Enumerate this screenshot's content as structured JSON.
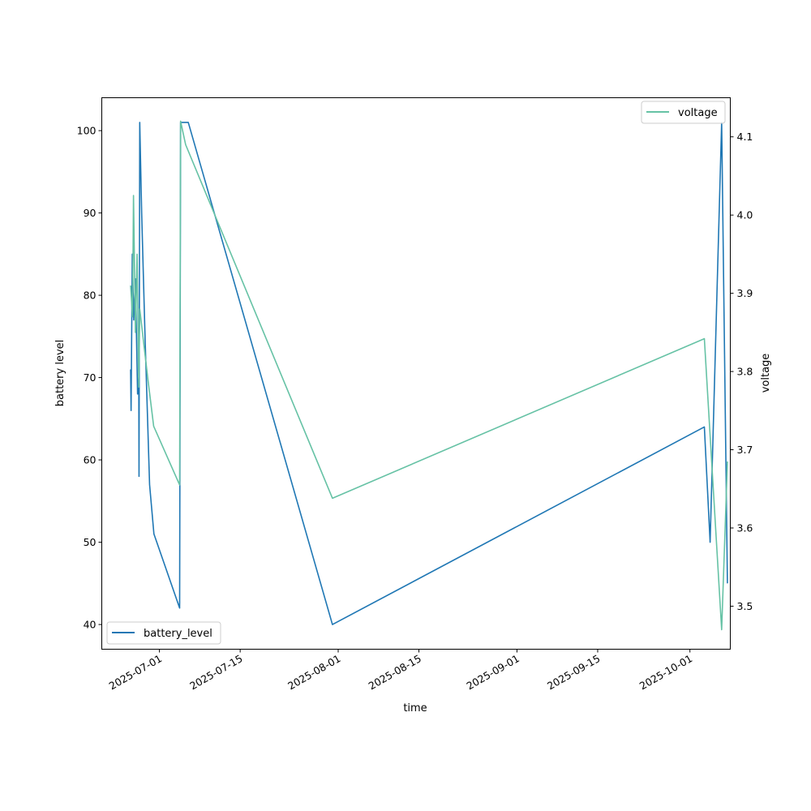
{
  "chart_data": {
    "type": "line",
    "xlabel": "time",
    "ylabel_left": "battery level",
    "ylabel_right": "voltage",
    "x_axis_type": "date",
    "xlim": [
      "2025-06-21",
      "2025-10-08"
    ],
    "ylim_left": [
      37,
      104
    ],
    "ylim_right": [
      3.445,
      4.15
    ],
    "x_ticks": [
      "2025-07-01",
      "2025-07-15",
      "2025-08-01",
      "2025-08-15",
      "2025-09-01",
      "2025-09-15",
      "2025-10-01"
    ],
    "y_ticks_left": [
      40,
      50,
      60,
      70,
      80,
      90,
      100
    ],
    "y_ticks_right": [
      3.5,
      3.6,
      3.7,
      3.8,
      3.9,
      4.0,
      4.1
    ],
    "y_ticks_right_labels": [
      "3.5",
      "3.6",
      "3.7",
      "3.8",
      "3.9",
      "4.0",
      "4.1"
    ],
    "grid": false,
    "series": [
      {
        "name": "battery_level",
        "axis": "left",
        "color": "#1f77b4",
        "legend_position": "lower-left",
        "points": [
          [
            "2025-06-26T00:00",
            71
          ],
          [
            "2025-06-26T02:00",
            66
          ],
          [
            "2025-06-26T07:00",
            85
          ],
          [
            "2025-06-26T13:00",
            77
          ],
          [
            "2025-06-26T20:00",
            82
          ],
          [
            "2025-06-27T05:00",
            68
          ],
          [
            "2025-06-27T10:00",
            70
          ],
          [
            "2025-06-27T11:00",
            58
          ],
          [
            "2025-06-27T14:00",
            101
          ],
          [
            "2025-06-27T22:00",
            90
          ],
          [
            "2025-06-28T12:00",
            75
          ],
          [
            "2025-06-29T07:00",
            57
          ],
          [
            "2025-06-30T01:00",
            51
          ],
          [
            "2025-07-04T12:00",
            42
          ],
          [
            "2025-07-04T16:00",
            101
          ],
          [
            "2025-07-06T00:00",
            101
          ],
          [
            "2025-07-31T00:00",
            40
          ],
          [
            "2025-10-03T12:00",
            64
          ],
          [
            "2025-10-04T12:00",
            50
          ],
          [
            "2025-10-06T12:00",
            101
          ],
          [
            "2025-10-07T12:00",
            45
          ]
        ]
      },
      {
        "name": "voltage",
        "axis": "right",
        "color": "#66c2a5",
        "legend_position": "upper-right",
        "points": [
          [
            "2025-06-26T00:00",
            3.91
          ],
          [
            "2025-06-26T08:00",
            3.87
          ],
          [
            "2025-06-26T12:00",
            4.025
          ],
          [
            "2025-06-26T20:00",
            3.85
          ],
          [
            "2025-06-27T03:00",
            3.95
          ],
          [
            "2025-06-27T07:00",
            3.85
          ],
          [
            "2025-06-27T10:00",
            3.78
          ],
          [
            "2025-06-27T14:00",
            3.88
          ],
          [
            "2025-06-29T00:00",
            3.79
          ],
          [
            "2025-06-30T00:00",
            3.73
          ],
          [
            "2025-07-04T12:00",
            3.655
          ],
          [
            "2025-07-04T16:00",
            4.12
          ],
          [
            "2025-07-05T13:00",
            4.09
          ],
          [
            "2025-07-31T00:00",
            3.638
          ],
          [
            "2025-10-03T12:00",
            3.842
          ],
          [
            "2025-10-06T12:00",
            3.47
          ],
          [
            "2025-10-07T12:00",
            3.685
          ]
        ]
      }
    ]
  }
}
